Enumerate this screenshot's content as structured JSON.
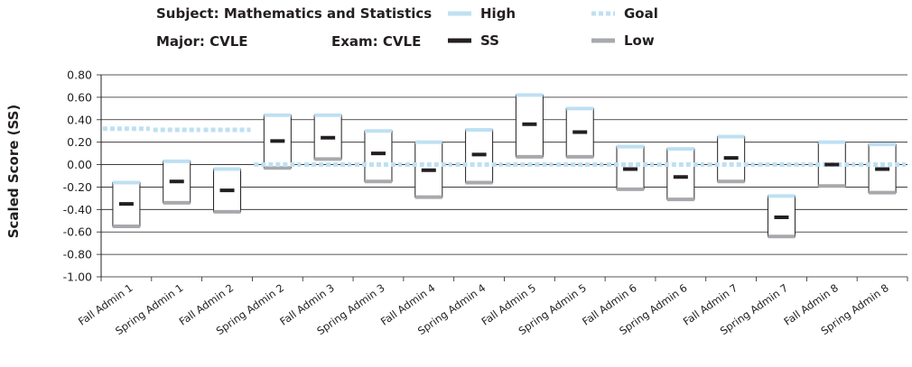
{
  "header": {
    "subject": "Subject: Mathematics and Statistics",
    "major": "Major: CVLE",
    "exam": "Exam: CVLE"
  },
  "chart_data": {
    "type": "box",
    "title": "",
    "xlabel": "",
    "ylabel": "Scaled Score (SS)",
    "ylim": [
      -1.0,
      0.8
    ],
    "yticks": [
      "0.80",
      "0.60",
      "0.40",
      "0.20",
      "0.00",
      "-0.20",
      "-0.40",
      "-0.60",
      "-0.80",
      "-1.00"
    ],
    "ytick_values": [
      0.8,
      0.6,
      0.4,
      0.2,
      0.0,
      -0.2,
      -0.4,
      -0.6,
      -0.8,
      -1.0
    ],
    "grid": true,
    "legend_position": "top",
    "legend": [
      {
        "name": "High",
        "color": "#bfe0f2",
        "style": "solid"
      },
      {
        "name": "Goal",
        "color": "#bfe0f2",
        "style": "dotted"
      },
      {
        "name": "SS",
        "color": "#231f20",
        "style": "solid"
      },
      {
        "name": "Low",
        "color": "#a7a9ac",
        "style": "solid"
      }
    ],
    "categories": [
      "Fall Admin 1",
      "Spring Admin 1",
      "Fall Admin 2",
      "Spring Admin 2",
      "Fall Admin 3",
      "Spring Admin 3",
      "Fall Admin 4",
      "Spring Admin 4",
      "Fall Admin 5",
      "Spring Admin 5",
      "Fall Admin 6",
      "Spring Admin 6",
      "Fall Admin 7",
      "Spring Admin 7",
      "Fall Admin 8",
      "Spring Admin 8"
    ],
    "series": [
      {
        "name": "High",
        "values": [
          -0.16,
          0.03,
          -0.04,
          0.44,
          0.44,
          0.3,
          0.2,
          0.31,
          0.62,
          0.5,
          0.16,
          0.14,
          0.25,
          -0.28,
          0.2,
          0.18
        ]
      },
      {
        "name": "Low",
        "values": [
          -0.55,
          -0.34,
          -0.42,
          -0.03,
          0.05,
          -0.15,
          -0.29,
          -0.16,
          0.07,
          0.07,
          -0.22,
          -0.31,
          -0.15,
          -0.64,
          -0.19,
          -0.25
        ]
      },
      {
        "name": "SS",
        "values": [
          -0.35,
          -0.15,
          -0.23,
          0.21,
          0.24,
          0.1,
          -0.05,
          0.09,
          0.36,
          0.29,
          -0.04,
          -0.11,
          0.06,
          -0.47,
          0.0,
          -0.04
        ]
      },
      {
        "name": "Goal",
        "values": [
          0.32,
          0.31,
          0.31,
          0.0,
          0.0,
          0.0,
          0.0,
          0.0,
          0.0,
          0.0,
          0.0,
          0.0,
          0.0,
          0.0,
          0.0,
          0.0
        ]
      }
    ],
    "colors": {
      "high": "#bfe0f2",
      "goal": "#bfe0f2",
      "ss": "#231f20",
      "low": "#a7a9ac",
      "box": "#231f20",
      "grid": "#231f20"
    }
  }
}
